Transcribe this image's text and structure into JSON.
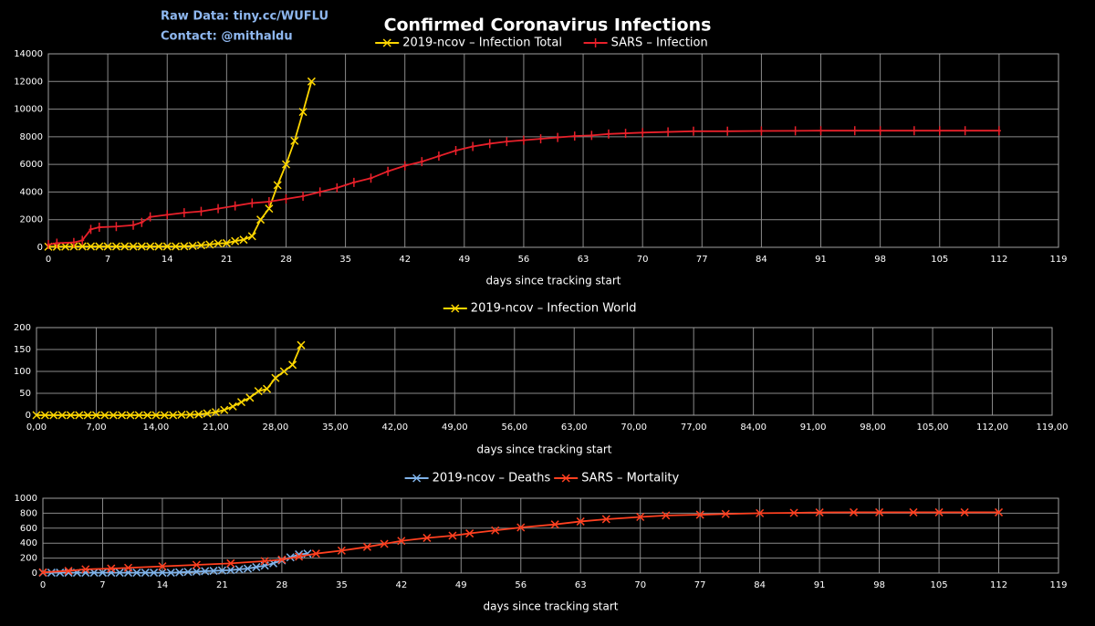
{
  "header": {
    "title": "Confirmed Coronavirus Infections",
    "notes": [
      "Raw Data: tiny.cc/WUFLU",
      "Contact: @mithaldu"
    ]
  },
  "chart_data": [
    {
      "type": "line",
      "x_label": "days since tracking start",
      "grid": true,
      "xlim": [
        0,
        119
      ],
      "xticks": [
        0,
        7,
        14,
        21,
        28,
        35,
        42,
        49,
        56,
        63,
        70,
        77,
        84,
        91,
        98,
        105,
        112,
        119
      ],
      "ylim": [
        0,
        14000
      ],
      "yticks": [
        0,
        2000,
        4000,
        6000,
        8000,
        10000,
        12000,
        14000
      ],
      "series": [
        {
          "name": "2019-ncov – Infection Total",
          "color": "#ffd700",
          "marker": "x",
          "x": [
            0,
            1,
            2,
            3,
            4,
            5,
            6,
            7,
            8,
            9,
            10,
            11,
            12,
            13,
            14,
            15,
            16,
            17,
            18,
            19,
            20,
            21,
            22,
            23,
            24,
            25,
            26,
            27,
            28,
            29,
            30,
            31
          ],
          "values": [
            40,
            45,
            50,
            60,
            60,
            60,
            60,
            60,
            60,
            60,
            60,
            60,
            60,
            60,
            60,
            60,
            70,
            100,
            150,
            200,
            280,
            300,
            450,
            550,
            800,
            2000,
            2800,
            4500,
            6000,
            7700,
            9800,
            12000
          ]
        },
        {
          "name": "SARS – Infection",
          "color": "#e8202a",
          "marker": "+",
          "x": [
            0,
            1,
            3,
            4,
            5,
            6,
            8,
            10,
            11,
            12,
            14,
            16,
            18,
            20,
            22,
            24,
            26,
            28,
            30,
            32,
            34,
            36,
            38,
            40,
            42,
            44,
            46,
            48,
            50,
            52,
            54,
            56,
            58,
            60,
            62,
            64,
            66,
            68,
            70,
            73,
            76,
            80,
            84,
            88,
            91,
            95,
            98,
            102,
            105,
            108,
            112
          ],
          "values": [
            200,
            300,
            350,
            500,
            1300,
            1450,
            1500,
            1600,
            1800,
            2200,
            2350,
            2500,
            2600,
            2800,
            3000,
            3200,
            3300,
            3500,
            3700,
            4000,
            4300,
            4700,
            5000,
            5500,
            5900,
            6200,
            6600,
            7000,
            7300,
            7500,
            7650,
            7750,
            7850,
            7950,
            8050,
            8100,
            8200,
            8250,
            8300,
            8350,
            8400,
            8400,
            8420,
            8430,
            8440,
            8440,
            8440,
            8440,
            8440,
            8440,
            8440
          ]
        }
      ]
    },
    {
      "type": "line",
      "x_label": "days since tracking start",
      "grid": true,
      "xlim": [
        0,
        119
      ],
      "xticks": [
        {
          "value": 0,
          "label": "0,00"
        },
        {
          "value": 7,
          "label": "7,00"
        },
        {
          "value": 14,
          "label": "14,00"
        },
        {
          "value": 21,
          "label": "21,00"
        },
        {
          "value": 28,
          "label": "28,00"
        },
        {
          "value": 35,
          "label": "35,00"
        },
        {
          "value": 42,
          "label": "42,00"
        },
        {
          "value": 49,
          "label": "49,00"
        },
        {
          "value": 56,
          "label": "56,00"
        },
        {
          "value": 63,
          "label": "63,00"
        },
        {
          "value": 70,
          "label": "70,00"
        },
        {
          "value": 77,
          "label": "77,00"
        },
        {
          "value": 84,
          "label": "84,00"
        },
        {
          "value": 91,
          "label": "91,00"
        },
        {
          "value": 98,
          "label": "98,00"
        },
        {
          "value": 105,
          "label": "105,00"
        },
        {
          "value": 112,
          "label": "112,00"
        },
        {
          "value": 119,
          "label": "119,00"
        }
      ],
      "ylim": [
        0,
        200
      ],
      "yticks": [
        0,
        50,
        100,
        150,
        200
      ],
      "series": [
        {
          "name": "2019-ncov – Infection World",
          "color": "#ffd700",
          "marker": "x",
          "x": [
            0,
            1,
            2,
            3,
            4,
            5,
            6,
            7,
            8,
            9,
            10,
            11,
            12,
            13,
            14,
            15,
            16,
            17,
            18,
            19,
            20,
            21,
            22,
            23,
            24,
            25,
            26,
            27,
            28,
            29,
            30,
            31
          ],
          "values": [
            0,
            0,
            0,
            0,
            0,
            0,
            0,
            0,
            0,
            0,
            0,
            0,
            0,
            0,
            0,
            0,
            0,
            1,
            1,
            2,
            4,
            7,
            12,
            20,
            30,
            40,
            55,
            60,
            85,
            100,
            115,
            160
          ]
        }
      ]
    },
    {
      "type": "line",
      "x_label": "days since tracking start",
      "grid": true,
      "xlim": [
        0,
        119
      ],
      "xticks": [
        0,
        7,
        14,
        21,
        28,
        35,
        42,
        49,
        56,
        63,
        70,
        77,
        84,
        91,
        98,
        105,
        112,
        119
      ],
      "ylim": [
        0,
        1000
      ],
      "yticks": [
        0,
        200,
        400,
        600,
        800,
        1000
      ],
      "series": [
        {
          "name": "2019-ncov – Deaths",
          "color": "#7fb2e8",
          "marker": "x",
          "x": [
            0,
            1,
            2,
            3,
            4,
            5,
            6,
            7,
            8,
            9,
            10,
            11,
            12,
            13,
            14,
            15,
            16,
            17,
            18,
            19,
            20,
            21,
            22,
            23,
            24,
            25,
            26,
            27,
            28,
            29,
            30,
            31
          ],
          "values": [
            5,
            5,
            5,
            5,
            5,
            5,
            5,
            5,
            5,
            5,
            5,
            5,
            5,
            5,
            5,
            5,
            10,
            15,
            20,
            25,
            30,
            35,
            40,
            50,
            60,
            80,
            100,
            130,
            170,
            210,
            250,
            260
          ]
        },
        {
          "name": "SARS – Mortality",
          "color": "#ff4020",
          "marker": "x",
          "x": [
            0,
            3,
            5,
            8,
            10,
            14,
            18,
            22,
            26,
            28,
            30,
            32,
            35,
            38,
            40,
            42,
            45,
            48,
            50,
            53,
            56,
            60,
            63,
            66,
            70,
            73,
            77,
            80,
            84,
            88,
            91,
            95,
            98,
            102,
            105,
            108,
            112
          ],
          "values": [
            10,
            30,
            50,
            60,
            70,
            90,
            110,
            130,
            160,
            180,
            220,
            260,
            300,
            350,
            390,
            430,
            470,
            500,
            530,
            570,
            610,
            650,
            690,
            720,
            750,
            770,
            780,
            790,
            800,
            805,
            810,
            812,
            812,
            812,
            812,
            812,
            812
          ]
        }
      ]
    }
  ]
}
